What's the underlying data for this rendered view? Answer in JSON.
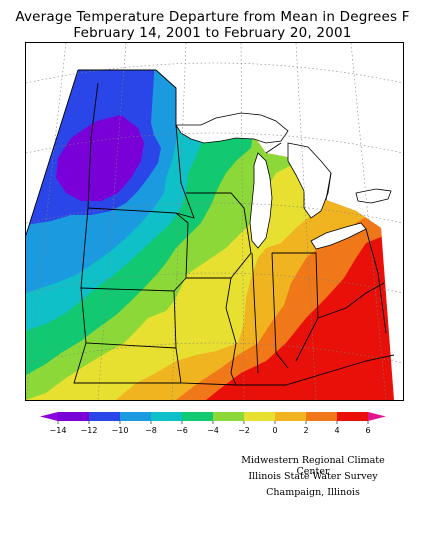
{
  "header": {
    "title_line1": "Average Temperature Departure from Mean in Degrees F",
    "title_line2": "February 14, 2001  to February 20, 2001"
  },
  "legend": {
    "tick_labels": [
      "−14",
      "−12",
      "−10",
      "−8",
      "−6",
      "−4",
      "−2",
      "0",
      "2",
      "4",
      "6"
    ],
    "colors": [
      "#7a00d8",
      "#2a46e8",
      "#1b9ae0",
      "#10c0c8",
      "#12c870",
      "#8cd838",
      "#e8e030",
      "#f0b420",
      "#f07818",
      "#e81008"
    ],
    "under_color": "#8a00e0",
    "over_color": "#e01890"
  },
  "credits": {
    "line1": "Midwestern Regional Climate Center",
    "line2": "Illinois State Water Survey",
    "line3": "Champaign, Illinois"
  }
}
